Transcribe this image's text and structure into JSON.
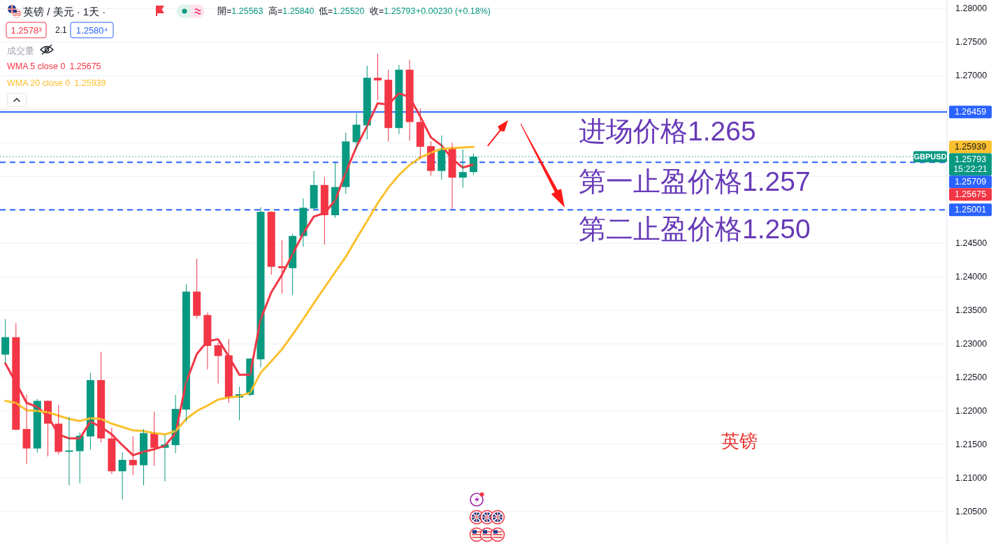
{
  "chart_data": {
    "type": "candlestick",
    "title": "英镑 / 美元 · 1天 ·",
    "categories": [
      null,
      null,
      null,
      null,
      null,
      null,
      null,
      null,
      null,
      null,
      null,
      null,
      null,
      null,
      null,
      null,
      null,
      null,
      null,
      null,
      null,
      null,
      null,
      null,
      null,
      null,
      null,
      null,
      null,
      null,
      null,
      null,
      null,
      null,
      null,
      null,
      null,
      null,
      null,
      null,
      null,
      null,
      null,
      null,
      null,
      null,
      null,
      null,
      null,
      null,
      null,
      null,
      null,
      null,
      null,
      null,
      null,
      null,
      null,
      null,
      null,
      null,
      null,
      null,
      null,
      null,
      null,
      null,
      null,
      null,
      null,
      null,
      null,
      null,
      null,
      null,
      null,
      null,
      null,
      null,
      null,
      null,
      null,
      null,
      null,
      null,
      null,
      null,
      null
    ],
    "ohlc": [
      [
        1.2284,
        1.2337,
        1.2271,
        1.231
      ],
      [
        1.231,
        1.2331,
        1.2171,
        1.2172
      ],
      [
        1.2173,
        1.2224,
        1.2121,
        1.2144
      ],
      [
        1.2144,
        1.2218,
        1.2138,
        1.2215
      ],
      [
        1.2215,
        1.2216,
        1.2132,
        1.2181
      ],
      [
        1.2181,
        1.2209,
        1.2135,
        1.2139
      ],
      [
        1.2139,
        1.2191,
        1.2089,
        1.2141
      ],
      [
        1.214,
        1.2168,
        1.2092,
        1.2163
      ],
      [
        1.2162,
        1.2257,
        1.2142,
        1.2246
      ],
      [
        1.2246,
        1.2288,
        1.2153,
        1.2159
      ],
      [
        1.2159,
        1.2175,
        1.2106,
        1.211
      ],
      [
        1.211,
        1.2138,
        1.2068,
        1.2127
      ],
      [
        1.2127,
        1.2162,
        1.2104,
        1.2119
      ],
      [
        1.2119,
        1.2173,
        1.2089,
        1.2167
      ],
      [
        1.2167,
        1.2199,
        1.2118,
        1.2145
      ],
      [
        1.2145,
        1.2164,
        1.2095,
        1.215
      ],
      [
        1.2149,
        1.2224,
        1.2137,
        1.2203
      ],
      [
        1.2202,
        1.2389,
        1.2184,
        1.2378
      ],
      [
        1.2378,
        1.2427,
        1.2338,
        1.2342
      ],
      [
        1.2343,
        1.2347,
        1.2262,
        1.2297
      ],
      [
        1.2298,
        1.2302,
        1.2241,
        1.2282
      ],
      [
        1.2283,
        1.2307,
        1.2212,
        1.222
      ],
      [
        1.222,
        1.2236,
        1.2186,
        1.2225
      ],
      [
        1.2224,
        1.2279,
        1.2222,
        1.2278
      ],
      [
        1.2277,
        1.2504,
        1.2265,
        1.2497
      ],
      [
        1.2497,
        1.2498,
        1.2403,
        1.2415
      ],
      [
        1.2416,
        1.2455,
        1.2375,
        1.2413
      ],
      [
        1.2413,
        1.2464,
        1.2373,
        1.2461
      ],
      [
        1.2461,
        1.2517,
        1.2445,
        1.2503
      ],
      [
        1.2502,
        1.2558,
        1.2501,
        1.2537
      ],
      [
        1.2537,
        1.2549,
        1.2448,
        1.2492
      ],
      [
        1.2492,
        1.2571,
        1.2488,
        1.2534
      ],
      [
        1.2534,
        1.2615,
        1.2524,
        1.2602
      ],
      [
        1.2601,
        1.2644,
        1.259,
        1.2627
      ],
      [
        1.2626,
        1.2715,
        1.2605,
        1.2697
      ],
      [
        1.2697,
        1.2733,
        1.2664,
        1.2693
      ],
      [
        1.2694,
        1.2709,
        1.2602,
        1.2622
      ],
      [
        1.2622,
        1.2716,
        1.2613,
        1.2709
      ],
      [
        1.2709,
        1.2724,
        1.2603,
        1.2631
      ],
      [
        1.2631,
        1.2651,
        1.2576,
        1.2594
      ],
      [
        1.2595,
        1.2602,
        1.2551,
        1.2558
      ],
      [
        1.2558,
        1.2611,
        1.2545,
        1.2591
      ],
      [
        1.2591,
        1.26,
        1.2501,
        1.2548
      ],
      [
        1.2548,
        1.259,
        1.2533,
        1.25563
      ],
      [
        1.25563,
        1.2584,
        1.2552,
        1.25793
      ],
      null,
      null,
      null,
      null,
      null,
      null,
      null,
      null,
      null,
      null,
      null,
      null,
      null,
      null,
      null,
      null,
      null,
      null,
      null,
      null,
      null,
      null,
      null,
      null,
      null,
      null,
      null,
      null,
      null,
      null,
      null,
      null,
      null,
      null,
      null,
      null,
      null,
      null,
      null,
      null,
      null,
      null,
      null,
      null
    ],
    "series": [
      {
        "name": "WMA 5 close 0",
        "type": "line",
        "color": "#f23645",
        "values": [
          1.2271,
          1.2242,
          1.2212,
          1.2206,
          1.2192,
          1.2165,
          1.2159,
          1.2159,
          1.2184,
          1.2176,
          1.2165,
          1.2149,
          1.2134,
          1.2139,
          1.2143,
          1.2148,
          1.2167,
          1.2243,
          1.2285,
          1.2304,
          1.2307,
          1.2281,
          1.2254,
          1.2254,
          1.2337,
          1.2377,
          1.2403,
          1.2434,
          1.2465,
          1.249,
          1.2495,
          1.2514,
          1.2556,
          1.2594,
          1.2625,
          1.2659,
          1.2657,
          1.2674,
          1.2668,
          1.2639,
          1.2608,
          1.2596,
          1.2576,
          1.2563,
          1.25675,
          null,
          null,
          null,
          null,
          null,
          null,
          null,
          null,
          null,
          null,
          null,
          null,
          null,
          null,
          null,
          null,
          null,
          null,
          null,
          null,
          null,
          null,
          null,
          null,
          null,
          null,
          null,
          null,
          null,
          null,
          null,
          null,
          null,
          null,
          null,
          null,
          null,
          null,
          null,
          null,
          null,
          null,
          null,
          null
        ]
      },
      {
        "name": "WMA 20 close 0",
        "type": "line",
        "color": "#fbc02d",
        "values": [
          1.2215,
          1.2212,
          1.2201,
          1.22,
          1.2198,
          1.2193,
          1.2188,
          1.2185,
          1.2189,
          1.2188,
          1.2181,
          1.2176,
          1.2171,
          1.217,
          1.2167,
          1.2165,
          1.217,
          1.2188,
          1.22,
          1.2208,
          1.2217,
          1.222,
          1.2222,
          1.2227,
          1.2257,
          1.2274,
          1.2292,
          1.2314,
          1.2337,
          1.2361,
          1.2384,
          1.2407,
          1.243,
          1.2457,
          1.2483,
          1.251,
          1.2533,
          1.2552,
          1.2567,
          1.2578,
          1.2585,
          1.2591,
          1.2592,
          1.2593,
          1.25939,
          null,
          null,
          null,
          null,
          null,
          null,
          null,
          null,
          null,
          null,
          null,
          null,
          null,
          null,
          null,
          null,
          null,
          null,
          null,
          null,
          null,
          null,
          null,
          null,
          null,
          null,
          null,
          null,
          null,
          null,
          null,
          null,
          null,
          null,
          null,
          null,
          null,
          null,
          null,
          null,
          null,
          null,
          null,
          null
        ]
      }
    ],
    "ylim": [
      1.2003,
      1.2813
    ],
    "yticks": [
      {
        "value": 1.205,
        "label": "1.20500"
      },
      {
        "value": 1.21,
        "label": "1.21000"
      },
      {
        "value": 1.215,
        "label": "1.21500"
      },
      {
        "value": 1.22,
        "label": "1.22000"
      },
      {
        "value": 1.225,
        "label": "1.22500"
      },
      {
        "value": 1.23,
        "label": "1.23000"
      },
      {
        "value": 1.235,
        "label": "1.23500"
      },
      {
        "value": 1.24,
        "label": "1.24000"
      },
      {
        "value": 1.245,
        "label": "1.24500"
      },
      {
        "value": 1.25,
        "label": null
      },
      {
        "value": 1.255,
        "label": null
      },
      {
        "value": 1.26,
        "label": null
      },
      {
        "value": 1.265,
        "label": null
      },
      {
        "value": 1.27,
        "label": "1.27000"
      },
      {
        "value": 1.275,
        "label": "1.27500"
      },
      {
        "value": 1.28,
        "label": "1.28000"
      }
    ],
    "tick_labels": "y",
    "grid": "y",
    "legend": "top left",
    "ref_lines": [
      {
        "axis": "y",
        "value": 1.26459,
        "label": "1.26459",
        "color": "#2962ff",
        "line_style": "solid"
      },
      {
        "axis": "y",
        "value": 1.25709,
        "label": "1.25709",
        "color": "#2962ff",
        "line_style": "dashed"
      },
      {
        "axis": "y",
        "value": 1.25001,
        "label": "1.25001",
        "color": "#2962ff",
        "line_style": "dashed"
      },
      {
        "axis": "y",
        "value": 1.25793,
        "label": "1.25793",
        "color": "#089981",
        "line_style": "dotted"
      }
    ],
    "annotations": [
      "1.2578³",
      "2.1",
      "1.2580⁴",
      "開=1.25563",
      "高=1.25840",
      "低=1.25520",
      "收=1.25793",
      "+0.00230 (+0.18%)",
      "成交量",
      "进场价格1.265",
      "第一止盈价格1.257",
      "第二止盈价格1.250",
      {
        "text": "GBPUSD",
        "y": 1.25793
      },
      "15:22:21",
      "英镑",
      "1.25675",
      "1.25939",
      "1.25675",
      "1.25939"
    ]
  }
}
